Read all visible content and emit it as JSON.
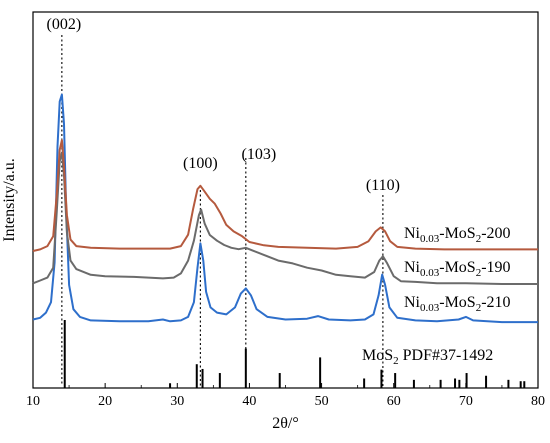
{
  "chart_data": {
    "type": "line",
    "title": "",
    "xlabel": "2θ/°",
    "ylabel": "Intensity/a.u.",
    "xlim": [
      10,
      80
    ],
    "xticks": [
      10,
      20,
      30,
      40,
      50,
      60,
      70,
      80
    ],
    "yticks": "none",
    "grid": false,
    "peak_labels": [
      {
        "text": "(002)",
        "x": 14.0
      },
      {
        "text": "(100)",
        "x": 33.2
      },
      {
        "text": "(103)",
        "x": 39.5
      },
      {
        "text": "(110)",
        "x": 58.5
      }
    ],
    "dotted_markers": [
      14.0,
      33.2,
      39.5,
      58.5
    ],
    "series": [
      {
        "name": "Ni0.03-MoS2-200",
        "label_main": "Ni",
        "label_sub1": "0.03",
        "label_mid": "-MoS",
        "label_sub2": "2",
        "label_end": "-200",
        "color": "#2e6fcb",
        "offset": 7.0,
        "points": [
          [
            10,
            0.2
          ],
          [
            11,
            0.3
          ],
          [
            11.8,
            0.6
          ],
          [
            12.5,
            1.2
          ],
          [
            13.0,
            3.5
          ],
          [
            13.4,
            10.2
          ],
          [
            13.7,
            12.8
          ],
          [
            14.0,
            13.2
          ],
          [
            14.3,
            11.5
          ],
          [
            14.6,
            6.5
          ],
          [
            15.0,
            2.2
          ],
          [
            15.6,
            0.8
          ],
          [
            16.5,
            0.35
          ],
          [
            18,
            0.15
          ],
          [
            22,
            0.1
          ],
          [
            26,
            0.1
          ],
          [
            28,
            0.2
          ],
          [
            29,
            0.1
          ],
          [
            30.5,
            0.15
          ],
          [
            31.5,
            0.35
          ],
          [
            32.3,
            1.2
          ],
          [
            32.8,
            3.2
          ],
          [
            33.2,
            4.6
          ],
          [
            33.6,
            3.6
          ],
          [
            34.0,
            1.8
          ],
          [
            34.6,
            0.9
          ],
          [
            35.5,
            0.6
          ],
          [
            36.8,
            0.5
          ],
          [
            38.0,
            0.9
          ],
          [
            38.8,
            1.7
          ],
          [
            39.5,
            2.0
          ],
          [
            40.2,
            1.6
          ],
          [
            41.0,
            0.8
          ],
          [
            42.5,
            0.35
          ],
          [
            45,
            0.2
          ],
          [
            48,
            0.25
          ],
          [
            49.5,
            0.4
          ],
          [
            51,
            0.2
          ],
          [
            54,
            0.15
          ],
          [
            56,
            0.2
          ],
          [
            57.2,
            0.5
          ],
          [
            57.9,
            1.6
          ],
          [
            58.4,
            2.8
          ],
          [
            58.8,
            2.2
          ],
          [
            59.4,
            0.9
          ],
          [
            60.5,
            0.3
          ],
          [
            63,
            0.15
          ],
          [
            66,
            0.1
          ],
          [
            69,
            0.2
          ],
          [
            70,
            0.35
          ],
          [
            71,
            0.15
          ],
          [
            75,
            0.05
          ],
          [
            80,
            0.05
          ]
        ]
      },
      {
        "name": "Ni0.03-MoS2-190",
        "label_main": "Ni",
        "label_sub1": "0.03",
        "label_mid": "-MoS",
        "label_sub2": "2",
        "label_end": "-190",
        "color": "#6b6b6b",
        "offset": 3.5,
        "points": [
          [
            10,
            0.4
          ],
          [
            11,
            0.6
          ],
          [
            12,
            0.8
          ],
          [
            12.8,
            1.5
          ],
          [
            13.3,
            5.5
          ],
          [
            13.7,
            9.0
          ],
          [
            14.0,
            9.6
          ],
          [
            14.3,
            8.0
          ],
          [
            14.7,
            4.0
          ],
          [
            15.2,
            2.0
          ],
          [
            16,
            1.4
          ],
          [
            18,
            1.0
          ],
          [
            20,
            0.9
          ],
          [
            24,
            0.85
          ],
          [
            28,
            0.75
          ],
          [
            29.5,
            0.8
          ],
          [
            30.5,
            1.1
          ],
          [
            31.5,
            2.0
          ],
          [
            32.3,
            3.4
          ],
          [
            33.0,
            5.2
          ],
          [
            33.3,
            5.6
          ],
          [
            33.8,
            4.6
          ],
          [
            34.5,
            3.8
          ],
          [
            35.5,
            3.4
          ],
          [
            36.5,
            3.1
          ],
          [
            37.5,
            2.9
          ],
          [
            38.5,
            2.8
          ],
          [
            39.5,
            2.9
          ],
          [
            40.5,
            2.7
          ],
          [
            42,
            2.4
          ],
          [
            44,
            2.0
          ],
          [
            46,
            1.8
          ],
          [
            48,
            1.5
          ],
          [
            50,
            1.3
          ],
          [
            52,
            1.0
          ],
          [
            54,
            0.9
          ],
          [
            56,
            0.8
          ],
          [
            57.3,
            1.2
          ],
          [
            58.0,
            2.0
          ],
          [
            58.5,
            2.3
          ],
          [
            59.1,
            1.8
          ],
          [
            60,
            0.9
          ],
          [
            61,
            0.55
          ],
          [
            63,
            0.5
          ],
          [
            66,
            0.4
          ],
          [
            70,
            0.4
          ],
          [
            75,
            0.35
          ],
          [
            80,
            0.35
          ]
        ]
      },
      {
        "name": "Ni0.03-MoS2-210",
        "label_main": "Ni",
        "label_sub1": "0.03",
        "label_mid": "-MoS",
        "label_sub2": "2",
        "label_end": "-210",
        "color": "#b55a3e",
        "offset": 0.0,
        "points": [
          [
            10,
            0.0
          ],
          [
            11,
            0.1
          ],
          [
            12,
            0.3
          ],
          [
            12.8,
            0.9
          ],
          [
            13.3,
            3.5
          ],
          [
            13.7,
            6.2
          ],
          [
            14.0,
            6.8
          ],
          [
            14.3,
            5.2
          ],
          [
            14.7,
            2.2
          ],
          [
            15.2,
            0.7
          ],
          [
            16,
            0.3
          ],
          [
            18,
            0.2
          ],
          [
            22,
            0.15
          ],
          [
            26,
            0.15
          ],
          [
            29,
            0.15
          ],
          [
            30.5,
            0.3
          ],
          [
            31.5,
            1.0
          ],
          [
            32.2,
            2.6
          ],
          [
            32.8,
            3.8
          ],
          [
            33.2,
            4.0
          ],
          [
            33.7,
            3.7
          ],
          [
            34.5,
            3.2
          ],
          [
            35.2,
            2.9
          ],
          [
            36.0,
            2.3
          ],
          [
            36.8,
            1.6
          ],
          [
            37.8,
            1.2
          ],
          [
            39,
            0.9
          ],
          [
            40,
            0.55
          ],
          [
            42,
            0.35
          ],
          [
            44,
            0.25
          ],
          [
            48,
            0.2
          ],
          [
            52,
            0.15
          ],
          [
            55,
            0.25
          ],
          [
            56.5,
            0.6
          ],
          [
            57.5,
            1.2
          ],
          [
            58.2,
            1.45
          ],
          [
            58.8,
            1.2
          ],
          [
            59.5,
            0.6
          ],
          [
            60.5,
            0.25
          ],
          [
            63,
            0.15
          ],
          [
            67,
            0.1
          ],
          [
            72,
            0.1
          ],
          [
            80,
            0.1
          ]
        ]
      }
    ],
    "reference": {
      "label_main": "MoS",
      "label_sub": "2",
      "label_end": "  PDF#37-1492",
      "lines": [
        [
          14.4,
          100
        ],
        [
          29.0,
          7
        ],
        [
          32.7,
          35
        ],
        [
          33.5,
          28
        ],
        [
          35.9,
          22
        ],
        [
          39.5,
          58
        ],
        [
          44.2,
          22
        ],
        [
          49.8,
          45
        ],
        [
          55.9,
          14
        ],
        [
          58.3,
          27
        ],
        [
          60.2,
          22
        ],
        [
          62.8,
          12
        ],
        [
          66.5,
          12
        ],
        [
          68.5,
          14
        ],
        [
          69.1,
          12
        ],
        [
          70.1,
          22
        ],
        [
          72.8,
          18
        ],
        [
          75.9,
          12
        ],
        [
          77.6,
          10
        ],
        [
          78.1,
          10
        ]
      ]
    }
  }
}
